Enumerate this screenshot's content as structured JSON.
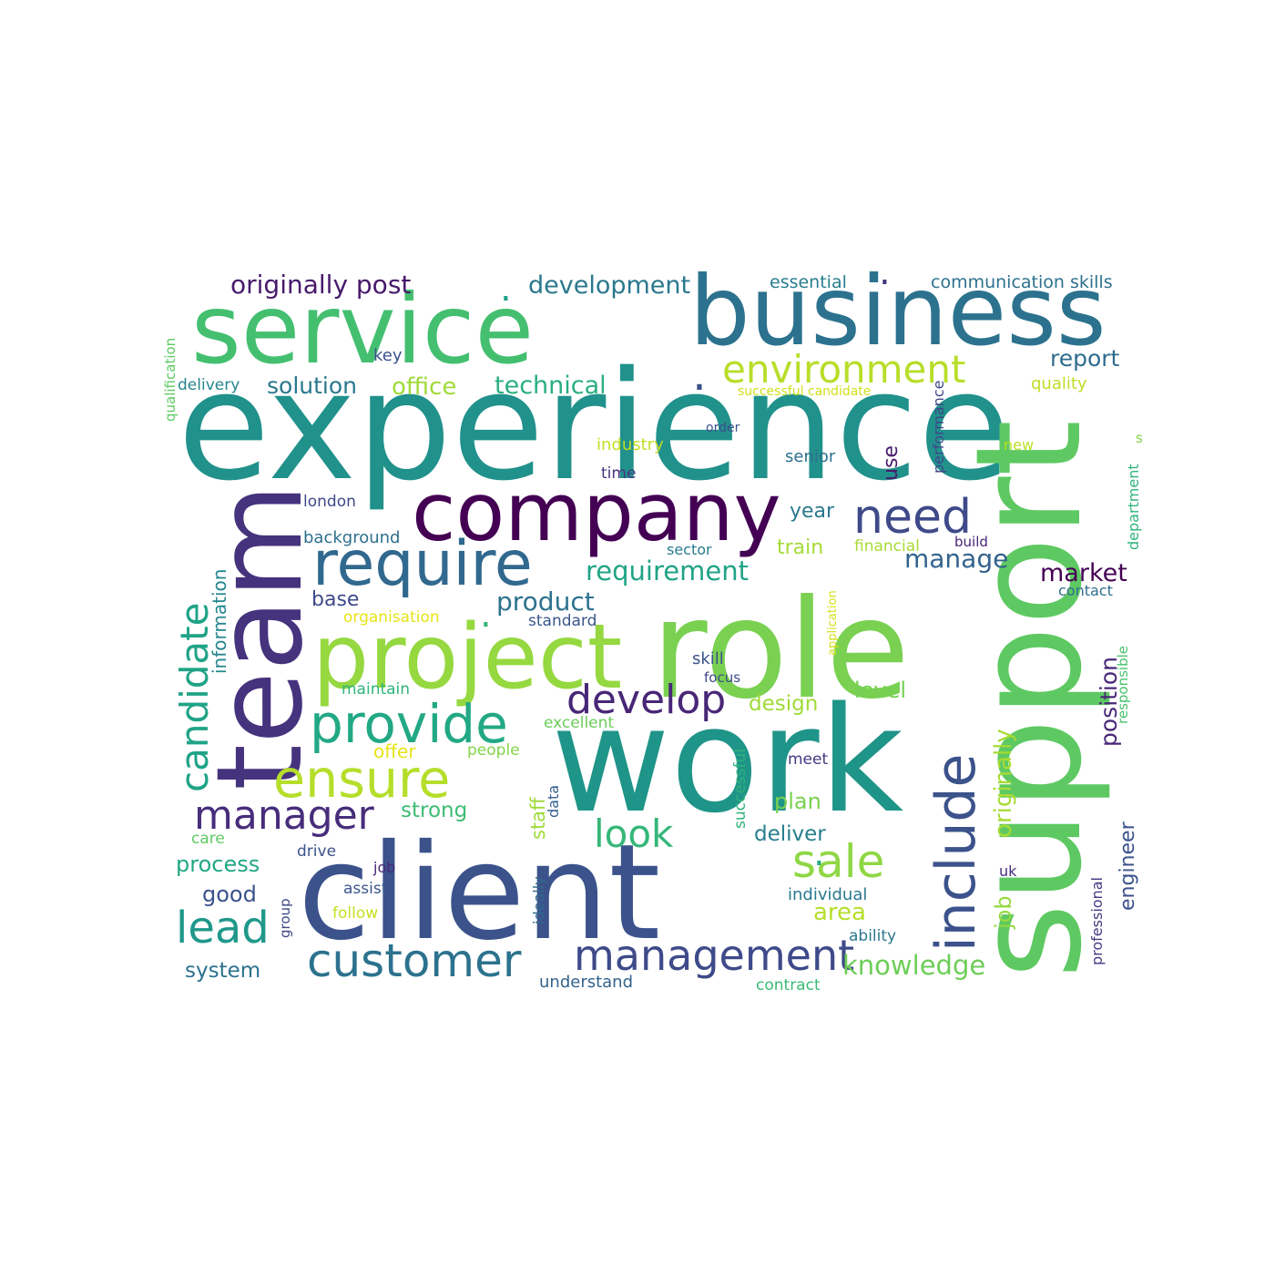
{
  "word_cloud": {
    "background": "#ffffff",
    "palette": "viridis",
    "words": [
      {
        "text": "experience",
        "color": "#21918c"
      },
      {
        "text": "work",
        "color": "#1f9488"
      },
      {
        "text": "role",
        "color": "#7ad151"
      },
      {
        "text": "client",
        "color": "#3b528b"
      },
      {
        "text": "support",
        "color": "#5ec962"
      },
      {
        "text": "business",
        "color": "#2c728e"
      },
      {
        "text": "service",
        "color": "#44bf70"
      },
      {
        "text": "team",
        "color": "#46337e"
      },
      {
        "text": "company",
        "color": "#440154"
      },
      {
        "text": "project",
        "color": "#95d840"
      },
      {
        "text": "require",
        "color": "#31688e"
      },
      {
        "text": "provide",
        "color": "#22a884"
      },
      {
        "text": "ensure",
        "color": "#b5de2b"
      },
      {
        "text": "customer",
        "color": "#2c728e"
      },
      {
        "text": "management",
        "color": "#3e4a89"
      },
      {
        "text": "include",
        "color": "#3b528b"
      },
      {
        "text": "environment",
        "color": "#b8de29"
      },
      {
        "text": "need",
        "color": "#3e4a89"
      },
      {
        "text": "candidate",
        "color": "#20a386"
      },
      {
        "text": "manager",
        "color": "#472d7b"
      },
      {
        "text": "develop",
        "color": "#482677"
      },
      {
        "text": "lead",
        "color": "#1f988b"
      },
      {
        "text": "sale",
        "color": "#8fd744"
      },
      {
        "text": "look",
        "color": "#35b779"
      },
      {
        "text": "originally post",
        "color": "#481a6c"
      },
      {
        "text": "development",
        "color": "#2a788e"
      },
      {
        "text": "requirement",
        "color": "#20a386"
      },
      {
        "text": "product",
        "color": "#2c728e"
      },
      {
        "text": "technical",
        "color": "#29af7f"
      },
      {
        "text": "office",
        "color": "#a0da39"
      },
      {
        "text": "solution",
        "color": "#2a788e"
      },
      {
        "text": "market",
        "color": "#440154"
      },
      {
        "text": "manage",
        "color": "#33638d"
      },
      {
        "text": "position",
        "color": "#482878"
      },
      {
        "text": "originally",
        "color": "#a8db34"
      },
      {
        "text": "job",
        "color": "#95d840"
      },
      {
        "text": "report",
        "color": "#2f6c8e"
      },
      {
        "text": "knowledge",
        "color": "#6ece58"
      },
      {
        "text": "area",
        "color": "#b5de2b"
      },
      {
        "text": "engineer",
        "color": "#3b528b"
      },
      {
        "text": "design",
        "color": "#a0da39"
      },
      {
        "text": "level",
        "color": "#75d054"
      },
      {
        "text": "plan",
        "color": "#7ad151"
      },
      {
        "text": "deliver",
        "color": "#277f8e"
      },
      {
        "text": "process",
        "color": "#22a884"
      },
      {
        "text": "year",
        "color": "#2a788e"
      },
      {
        "text": "train",
        "color": "#a5db36"
      },
      {
        "text": "base",
        "color": "#3e4a89"
      },
      {
        "text": "information",
        "color": "#24868e"
      },
      {
        "text": "strong",
        "color": "#3dbc74"
      },
      {
        "text": "staff",
        "color": "#9fda3a"
      },
      {
        "text": "good",
        "color": "#3b528b"
      },
      {
        "text": "system",
        "color": "#2c728e"
      },
      {
        "text": "use",
        "color": "#481a6c"
      },
      {
        "text": "communication skills",
        "color": "#2d718e"
      },
      {
        "text": "essential",
        "color": "#287d8e"
      },
      {
        "text": "key",
        "color": "#3b528b"
      },
      {
        "text": "quality",
        "color": "#bddf26"
      },
      {
        "text": "delivery",
        "color": "#25858e"
      },
      {
        "text": "qualification",
        "color": "#5ec962"
      },
      {
        "text": "successful candidate",
        "color": "#d0e11c"
      },
      {
        "text": "industry",
        "color": "#c2df23"
      },
      {
        "text": "time",
        "color": "#46327e"
      },
      {
        "text": "order",
        "color": "#3b528b"
      },
      {
        "text": "senior",
        "color": "#2d708e"
      },
      {
        "text": "new",
        "color": "#bddf26"
      },
      {
        "text": "s",
        "color": "#86d549"
      },
      {
        "text": "performance",
        "color": "#3f4788"
      },
      {
        "text": "department",
        "color": "#2fb47c"
      },
      {
        "text": "london",
        "color": "#3e4989"
      },
      {
        "text": "background",
        "color": "#2d708e"
      },
      {
        "text": "sector",
        "color": "#287c8e"
      },
      {
        "text": "financial",
        "color": "#a8db34"
      },
      {
        "text": "build",
        "color": "#482475"
      },
      {
        "text": "contact",
        "color": "#2e6f8e"
      },
      {
        "text": "organisation",
        "color": "#e7e419"
      },
      {
        "text": "standard",
        "color": "#39568c"
      },
      {
        "text": "application",
        "color": "#d2e21b"
      },
      {
        "text": "responsible",
        "color": "#4ac16d"
      },
      {
        "text": "skill",
        "color": "#3b528b"
      },
      {
        "text": "focus",
        "color": "#3e4a89"
      },
      {
        "text": "maintain",
        "color": "#2fb47c"
      },
      {
        "text": "excellent",
        "color": "#6ccd5a"
      },
      {
        "text": "offer",
        "color": "#e5e419"
      },
      {
        "text": "people",
        "color": "#84d44b"
      },
      {
        "text": "meet",
        "color": "#443983"
      },
      {
        "text": "successful",
        "color": "#2eb37c"
      },
      {
        "text": "data",
        "color": "#355f8d"
      },
      {
        "text": "care",
        "color": "#5ec962"
      },
      {
        "text": "drive",
        "color": "#3b528b"
      },
      {
        "text": "job",
        "color": "#482878"
      },
      {
        "text": "assist",
        "color": "#39568c"
      },
      {
        "text": "follow",
        "color": "#c8e020"
      },
      {
        "text": "group",
        "color": "#3f4889"
      },
      {
        "text": "ideally",
        "color": "#31688e"
      },
      {
        "text": "uk",
        "color": "#46307e"
      },
      {
        "text": "individual",
        "color": "#2a788e"
      },
      {
        "text": "ability",
        "color": "#2a788e"
      },
      {
        "text": "professional",
        "color": "#453882"
      },
      {
        "text": "understand",
        "color": "#33638d"
      },
      {
        "text": "contract",
        "color": "#3aba76"
      },
      {
        "text": ".",
        "color": "#3b528b"
      },
      {
        "text": ".",
        "color": "#1fa088"
      },
      {
        "text": ".",
        "color": "#35b779"
      },
      {
        "text": ".",
        "color": "#29af7f"
      },
      {
        "text": ".",
        "color": "#453781"
      }
    ]
  }
}
